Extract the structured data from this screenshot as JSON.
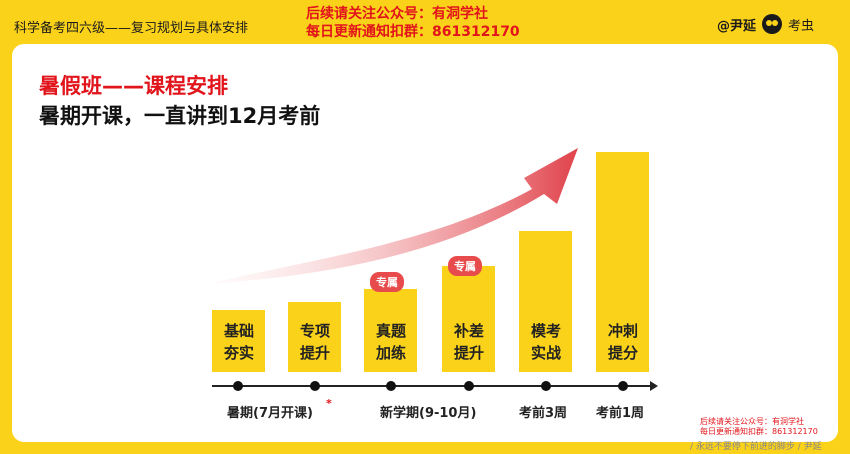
{
  "header": {
    "title": "科学备考四六级——复习规划与具体安排",
    "promo_line1": "后续请关注公众号：有洞学社",
    "promo_line2": "每日更新通知扣群：861312170",
    "brand_name": "@尹延",
    "brand_name2": "考虫"
  },
  "slide": {
    "section_title": "暑假班——课程安排",
    "subtitle": "暑期开课，一直讲到12月考前",
    "bars": [
      {
        "label": "基础\n夯实",
        "line1": "基础",
        "line2": "夯实"
      },
      {
        "label": "专项\n提升",
        "line1": "专项",
        "line2": "提升"
      },
      {
        "line1": "真题",
        "line2": "加练"
      },
      {
        "line1": "补差",
        "line2": "提升"
      },
      {
        "line1": "模考",
        "line2": "实战"
      },
      {
        "line1": "冲刺",
        "line2": "提分"
      }
    ],
    "badges": [
      "专属",
      "专属"
    ],
    "timeline": {
      "labels": [
        "暑期(7月开课)",
        "新学期(9-10月)",
        "考前3周",
        "考前1周"
      ],
      "asterisk": "*"
    },
    "watermark_line1": "后续请关注公众号：有洞学社",
    "watermark_line2": "每日更新通知扣群：861312170",
    "footer_note": "/ 永远不要停下前进的脚步 / 尹延"
  },
  "colors": {
    "background": "#fbd21a",
    "accent_red": "#e1141b",
    "bar": "#fbd21a",
    "badge": "#e84b4b"
  }
}
